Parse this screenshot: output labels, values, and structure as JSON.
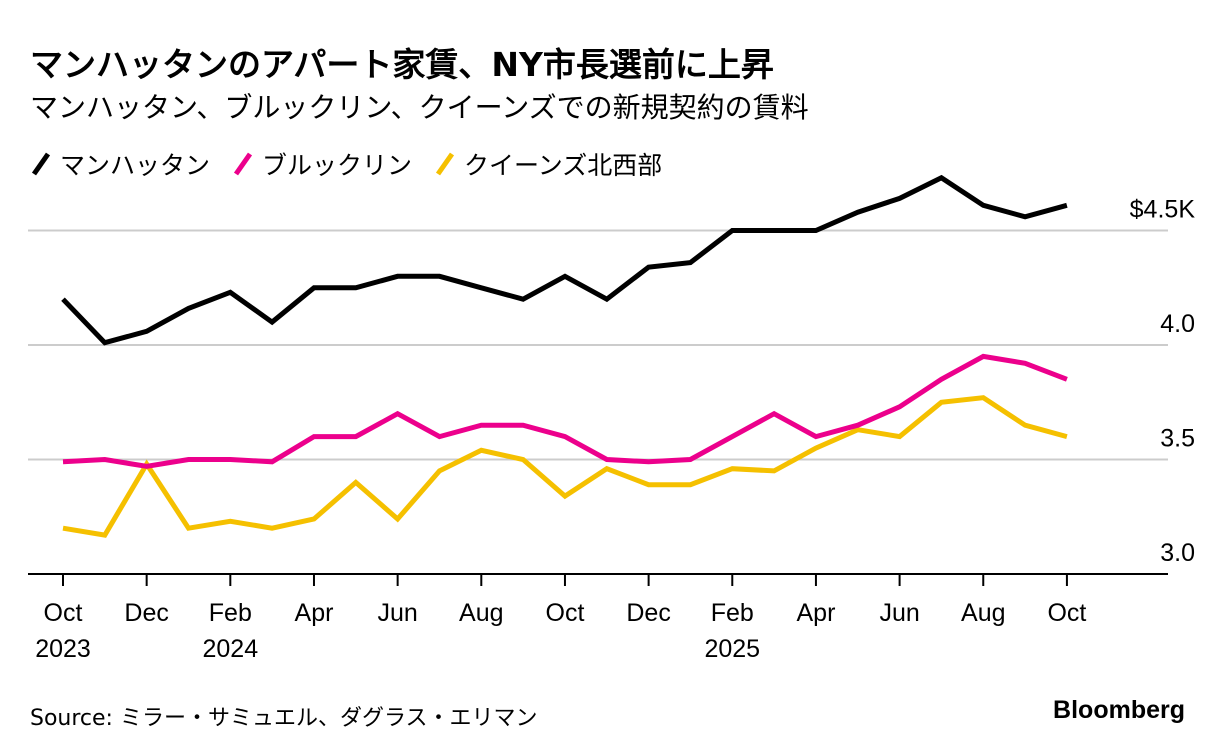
{
  "chart_data": {
    "type": "line",
    "title": "マンハッタンのアパート家賃、NY市長選前に上昇",
    "subtitle": "マンハッタン、ブルックリン、クイーンズでの新規契約の賃料",
    "x": [
      "2023-10",
      "2023-11",
      "2023-12",
      "2024-01",
      "2024-02",
      "2024-03",
      "2024-04",
      "2024-05",
      "2024-06",
      "2024-07",
      "2024-08",
      "2024-09",
      "2024-10",
      "2024-11",
      "2024-12",
      "2025-01",
      "2025-02",
      "2025-03",
      "2025-04",
      "2025-05",
      "2025-06",
      "2025-07",
      "2025-08",
      "2025-09",
      "2025-10"
    ],
    "x_tick_labels": [
      {
        "month": "Oct",
        "year": "2023",
        "index": 0
      },
      {
        "month": "Dec",
        "year": "",
        "index": 2
      },
      {
        "month": "Feb",
        "year": "2024",
        "index": 4
      },
      {
        "month": "Apr",
        "year": "",
        "index": 6
      },
      {
        "month": "Jun",
        "year": "",
        "index": 8
      },
      {
        "month": "Aug",
        "year": "",
        "index": 10
      },
      {
        "month": "Oct",
        "year": "",
        "index": 12
      },
      {
        "month": "Dec",
        "year": "",
        "index": 14
      },
      {
        "month": "Feb",
        "year": "2025",
        "index": 16
      },
      {
        "month": "Apr",
        "year": "",
        "index": 18
      },
      {
        "month": "Jun",
        "year": "",
        "index": 20
      },
      {
        "month": "Aug",
        "year": "",
        "index": 22
      },
      {
        "month": "Oct",
        "year": "",
        "index": 24
      }
    ],
    "y_ticks": [
      {
        "value": 4.5,
        "label": "$4.5K"
      },
      {
        "value": 4.0,
        "label": "4.0"
      },
      {
        "value": 3.5,
        "label": "3.5"
      },
      {
        "value": 3.0,
        "label": "3.0"
      }
    ],
    "ylim": [
      3.0,
      4.7
    ],
    "ylabel": "",
    "xlabel": "",
    "series": [
      {
        "name": "マンハッタン",
        "color": "#000000",
        "values": [
          4.2,
          4.01,
          4.06,
          4.16,
          4.23,
          4.1,
          4.25,
          4.25,
          4.3,
          4.3,
          4.25,
          4.2,
          4.3,
          4.2,
          4.34,
          4.36,
          4.5,
          4.5,
          4.5,
          4.58,
          4.64,
          4.73,
          4.61,
          4.56,
          4.61
        ]
      },
      {
        "name": "ブルックリン",
        "color": "#ec008c",
        "values": [
          3.49,
          3.5,
          3.47,
          3.5,
          3.5,
          3.49,
          3.6,
          3.6,
          3.7,
          3.6,
          3.65,
          3.65,
          3.6,
          3.5,
          3.49,
          3.5,
          3.6,
          3.7,
          3.6,
          3.65,
          3.73,
          3.85,
          3.95,
          3.92,
          3.85
        ]
      },
      {
        "name": "クイーンズ北西部",
        "color": "#f5c000",
        "values": [
          3.2,
          3.17,
          3.48,
          3.2,
          3.23,
          3.2,
          3.24,
          3.4,
          3.24,
          3.45,
          3.54,
          3.5,
          3.34,
          3.46,
          3.39,
          3.39,
          3.46,
          3.45,
          3.55,
          3.63,
          3.6,
          3.75,
          3.77,
          3.65,
          3.6
        ]
      }
    ]
  },
  "source": "Source: ミラー・サミュエル、ダグラス・エリマン",
  "brand": "Bloomberg"
}
